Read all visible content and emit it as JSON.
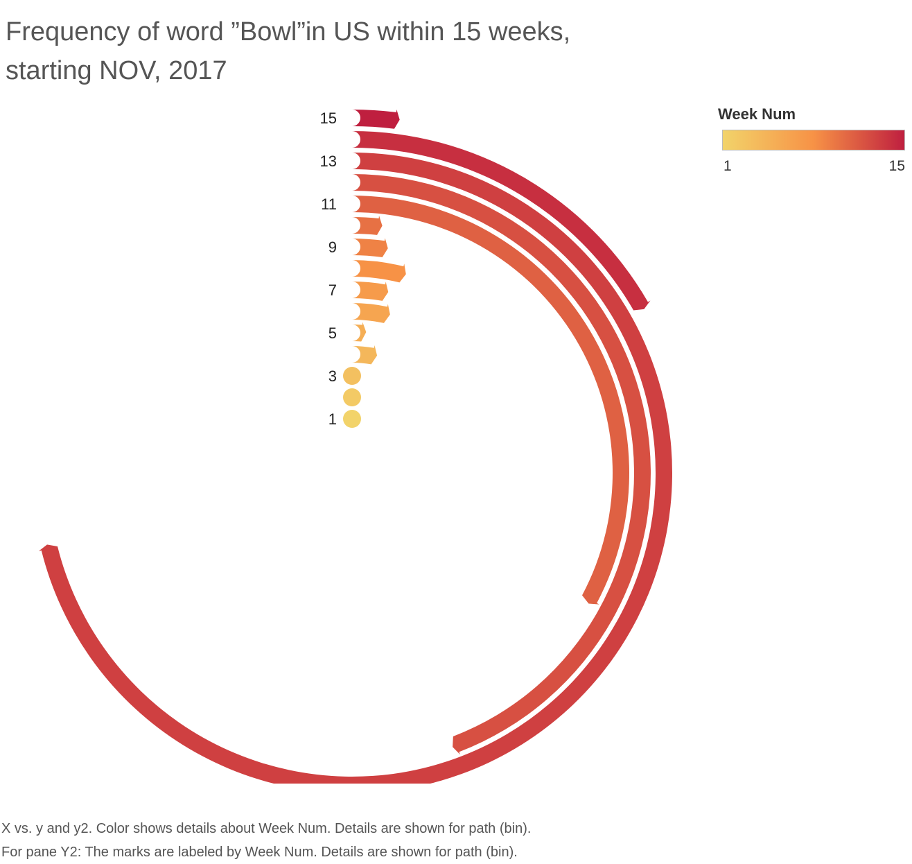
{
  "title_line1": "Frequency of word ”Bowl”in US within 15 weeks,",
  "title_line2": "starting NOV, 2017",
  "legend": {
    "title": "Week Num",
    "min_label": "1",
    "max_label": "15",
    "color_low": "#f2d36a",
    "color_mid": "#f79246",
    "color_high": "#bf1f3f"
  },
  "caption": {
    "line1": "X vs. y and y2.  Color shows details about Week Num.  Details are shown for path (bin).",
    "line2": "For pane Y2:  The marks are labeled by Week Num.  Details are shown for path (bin)."
  },
  "chart_data": {
    "type": "radial-bar",
    "legend_placement": "top-right",
    "grid": false,
    "color_field": "Week Num",
    "week_labels": [
      "1",
      "3",
      "5",
      "7",
      "9",
      "11",
      "13",
      "15"
    ],
    "weeks": [
      1,
      2,
      3,
      4,
      5,
      6,
      7,
      8,
      9,
      10,
      11,
      12,
      13,
      14,
      15
    ],
    "sweep_degrees": [
      1,
      2,
      3,
      10,
      4,
      12,
      10,
      14,
      8,
      6,
      118,
      159,
      256,
      60,
      7
    ]
  }
}
